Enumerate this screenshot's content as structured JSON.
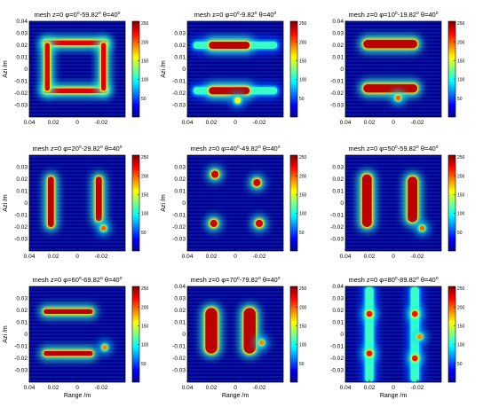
{
  "chart_data": [
    {
      "type": "heatmap",
      "title": {
        "pre": "mesh  z=0  φ=0",
        "mid": "-59.82",
        "post": "  θ=40"
      },
      "xlabel": "",
      "ylabel": "Azi /m",
      "xticks": [
        "0.04",
        "0.02",
        "0",
        "-0.02"
      ],
      "yticks": [
        "0.04",
        "0.03",
        "0.02",
        "0.01",
        "0",
        "-0.01",
        "-0.02",
        "-0.03"
      ],
      "xlim": [
        0.04,
        -0.04
      ],
      "ylim": [
        -0.04,
        0.04
      ],
      "colorbar_ticks": [
        "250",
        "200",
        "150",
        "100",
        "50"
      ],
      "colorbar_range": [
        0,
        255
      ],
      "features": [
        {
          "shape": "bar",
          "x": [
            0.028,
            -0.025
          ],
          "y": 0.022,
          "thickness": 0.004,
          "intensity": 230
        },
        {
          "shape": "bar",
          "x": [
            0.028,
            -0.025
          ],
          "y": -0.018,
          "thickness": 0.004,
          "intensity": 230
        },
        {
          "shape": "bar",
          "x": 0.025,
          "y": [
            -0.018,
            0.022
          ],
          "thickness": 0.004,
          "intensity": 230
        },
        {
          "shape": "bar",
          "x": -0.022,
          "y": [
            -0.018,
            0.022
          ],
          "thickness": 0.004,
          "intensity": 230
        }
      ]
    },
    {
      "type": "heatmap",
      "title": {
        "pre": "mesh  z=0  φ=0",
        "mid": "-9.82",
        "post": "  θ=40"
      },
      "xlabel": "",
      "ylabel": "Azi /m",
      "xticks": [
        "0.04",
        "0.02",
        "0",
        "-0.02"
      ],
      "yticks": [
        "0.03",
        "0.02",
        "0.01",
        "0",
        "-0.01",
        "-0.02",
        "-0.03"
      ],
      "xlim": [
        0.04,
        -0.04
      ],
      "ylim": [
        -0.04,
        0.04
      ],
      "colorbar_ticks": [
        "250",
        "200",
        "150",
        "100",
        "50"
      ],
      "colorbar_range": [
        0,
        255
      ],
      "features": [
        {
          "shape": "bar",
          "x": [
            0.035,
            -0.035
          ],
          "y": 0.02,
          "thickness": 0.006,
          "intensity": 110
        },
        {
          "shape": "bar",
          "x": [
            0.022,
            -0.012
          ],
          "y": 0.02,
          "thickness": 0.006,
          "intensity": 240
        },
        {
          "shape": "bar",
          "x": [
            0.035,
            -0.035
          ],
          "y": -0.018,
          "thickness": 0.006,
          "intensity": 110
        },
        {
          "shape": "bar",
          "x": [
            0.022,
            -0.012
          ],
          "y": -0.018,
          "thickness": 0.006,
          "intensity": 240
        },
        {
          "shape": "blob",
          "x": -0.002,
          "y": -0.026,
          "size": 0.005,
          "intensity": 160
        }
      ]
    },
    {
      "type": "heatmap",
      "title": {
        "pre": "mesh  z=0  φ=10",
        "mid": "-19.82",
        "post": "  θ=40"
      },
      "xlabel": "",
      "ylabel": "",
      "xticks": [
        "0.04",
        "0.02",
        "0",
        "-0.02"
      ],
      "yticks": [
        "0.04",
        "0.03",
        "0.02",
        "0.01",
        "0",
        "-0.01",
        "-0.02",
        "-0.03"
      ],
      "xlim": [
        0.04,
        -0.04
      ],
      "ylim": [
        -0.04,
        0.04
      ],
      "colorbar_ticks": [
        "250",
        "200",
        "150",
        "100",
        "50"
      ],
      "colorbar_range": [
        0,
        255
      ],
      "features": [
        {
          "shape": "bar",
          "x": [
            0.025,
            -0.02
          ],
          "y": 0.021,
          "thickness": 0.007,
          "intensity": 240
        },
        {
          "shape": "bar",
          "x": [
            0.025,
            -0.02
          ],
          "y": -0.016,
          "thickness": 0.007,
          "intensity": 240
        },
        {
          "shape": "blob",
          "x": -0.004,
          "y": -0.024,
          "size": 0.004,
          "intensity": 200
        }
      ]
    },
    {
      "type": "heatmap",
      "title": {
        "pre": "mesh  z=0  φ=20",
        "mid": "-29.82",
        "post": "  θ=40"
      },
      "xlabel": "",
      "ylabel": "Azi /m",
      "xticks": [
        "0.04",
        "0.02",
        "0",
        "-0.02"
      ],
      "yticks": [
        "0.03",
        "0.02",
        "0.01",
        "0",
        "-0.01",
        "-0.02",
        "-0.03"
      ],
      "xlim": [
        0.04,
        -0.04
      ],
      "ylim": [
        -0.04,
        0.04
      ],
      "colorbar_ticks": [
        "250",
        "200",
        "150",
        "100",
        "50"
      ],
      "colorbar_range": [
        0,
        255
      ],
      "features": [
        {
          "shape": "bar",
          "x": 0.022,
          "y": [
            -0.02,
            0.022
          ],
          "thickness": 0.005,
          "intensity": 240
        },
        {
          "shape": "bar",
          "x": -0.018,
          "y": [
            -0.015,
            0.022
          ],
          "thickness": 0.005,
          "intensity": 240
        },
        {
          "shape": "blob",
          "x": -0.022,
          "y": -0.021,
          "size": 0.004,
          "intensity": 200
        }
      ]
    },
    {
      "type": "heatmap",
      "title": {
        "pre": "mesh  z=0  φ=40",
        "mid": "-49.82",
        "post": "  θ=40"
      },
      "xlabel": "",
      "ylabel": "Azi /m",
      "xticks": [
        "0.04",
        "0.02",
        "0",
        "-0.02"
      ],
      "yticks": [
        "0.03",
        "0.02",
        "0.01",
        "0",
        "-0.01",
        "-0.02",
        "-0.03"
      ],
      "xlim": [
        0.04,
        -0.04
      ],
      "ylim": [
        -0.04,
        0.04
      ],
      "colorbar_ticks": [
        "250",
        "200",
        "150",
        "100",
        "50"
      ],
      "colorbar_range": [
        0,
        255
      ],
      "features": [
        {
          "shape": "blob",
          "x": 0.017,
          "y": 0.024,
          "size": 0.006,
          "intensity": 235
        },
        {
          "shape": "blob",
          "x": -0.018,
          "y": 0.017,
          "size": 0.006,
          "intensity": 235
        },
        {
          "shape": "blob",
          "x": 0.018,
          "y": -0.017,
          "size": 0.006,
          "intensity": 235
        },
        {
          "shape": "blob",
          "x": -0.02,
          "y": -0.017,
          "size": 0.006,
          "intensity": 235
        }
      ]
    },
    {
      "type": "heatmap",
      "title": {
        "pre": "mesh  z=0  φ=50",
        "mid": "-59.82",
        "post": "  θ=40"
      },
      "xlabel": "",
      "ylabel": "",
      "xticks": [
        "0.04",
        "0.02",
        "0",
        "-0.02"
      ],
      "yticks": [
        "0.03",
        "0.02",
        "0.01",
        "0",
        "-0.01",
        "-0.02",
        "-0.03"
      ],
      "xlim": [
        0.04,
        -0.04
      ],
      "ylim": [
        -0.04,
        0.04
      ],
      "colorbar_ticks": [
        "250",
        "200",
        "150",
        "100",
        "50"
      ],
      "colorbar_range": [
        0,
        255
      ],
      "features": [
        {
          "shape": "bar",
          "x": 0.022,
          "y": [
            -0.02,
            0.024
          ],
          "thickness": 0.008,
          "intensity": 240
        },
        {
          "shape": "bar",
          "x": -0.016,
          "y": [
            -0.016,
            0.022
          ],
          "thickness": 0.008,
          "intensity": 240
        },
        {
          "shape": "blob",
          "x": -0.024,
          "y": -0.021,
          "size": 0.004,
          "intensity": 200
        }
      ]
    },
    {
      "type": "heatmap",
      "title": {
        "pre": "mesh  z=0  φ=60",
        "mid": "-69.82",
        "post": "  θ=40"
      },
      "xlabel": "Range /m",
      "ylabel": "Azi /m",
      "xticks": [
        "0.04",
        "0.02",
        "0",
        "-0.02"
      ],
      "yticks": [
        "0.03",
        "0.02",
        "0.01",
        "0",
        "-0.01",
        "-0.02",
        "-0.03"
      ],
      "xlim": [
        0.04,
        -0.04
      ],
      "ylim": [
        -0.04,
        0.04
      ],
      "colorbar_ticks": [
        "250",
        "200",
        "150",
        "100",
        "50"
      ],
      "colorbar_range": [
        0,
        255
      ],
      "features": [
        {
          "shape": "bar",
          "x": [
            0.028,
            -0.013
          ],
          "y": 0.019,
          "thickness": 0.004,
          "intensity": 240
        },
        {
          "shape": "bar",
          "x": [
            0.028,
            -0.013
          ],
          "y": -0.016,
          "thickness": 0.004,
          "intensity": 240
        },
        {
          "shape": "blob",
          "x": -0.023,
          "y": -0.011,
          "size": 0.004,
          "intensity": 190
        }
      ]
    },
    {
      "type": "heatmap",
      "title": {
        "pre": "mesh  z=0  φ=70",
        "mid": "-79.82",
        "post": "  θ=40"
      },
      "xlabel": "Range /m",
      "ylabel": "",
      "xticks": [
        "0.04",
        "0.02",
        "0",
        "-0.02"
      ],
      "yticks": [
        "0.04",
        "0.03",
        "0.02",
        "0.01",
        "0",
        "-0.01",
        "-0.02",
        "-0.03"
      ],
      "xlim": [
        0.04,
        -0.04
      ],
      "ylim": [
        -0.04,
        0.04
      ],
      "colorbar_ticks": [
        "250",
        "200",
        "150",
        "100",
        "50"
      ],
      "colorbar_range": [
        0,
        255
      ],
      "features": [
        {
          "shape": "bar",
          "x": 0.02,
          "y": [
            -0.016,
            0.022
          ],
          "thickness": 0.01,
          "intensity": 240
        },
        {
          "shape": "bar",
          "x": -0.012,
          "y": [
            -0.016,
            0.022
          ],
          "thickness": 0.01,
          "intensity": 240
        },
        {
          "shape": "blob",
          "x": -0.022,
          "y": -0.007,
          "size": 0.004,
          "intensity": 190
        }
      ]
    },
    {
      "type": "heatmap",
      "title": {
        "pre": "mesh  z=0  φ=80",
        "mid": "-89.82",
        "post": "  θ=40"
      },
      "xlabel": "Range /m",
      "ylabel": "",
      "xticks": [
        "0.04",
        "0.02",
        "0",
        "-0.02"
      ],
      "yticks": [
        "0.04",
        "0.03",
        "0.02",
        "0.01",
        "0",
        "-0.01",
        "-0.02",
        "-0.03"
      ],
      "xlim": [
        0.04,
        -0.04
      ],
      "ylim": [
        -0.04,
        0.04
      ],
      "colorbar_ticks": [
        "250",
        "200",
        "150",
        "100",
        "50"
      ],
      "colorbar_range": [
        0,
        255
      ],
      "features": [
        {
          "shape": "bar",
          "x": 0.02,
          "y": [
            -0.04,
            0.04
          ],
          "thickness": 0.007,
          "intensity": 110
        },
        {
          "shape": "bar",
          "x": -0.018,
          "y": [
            -0.04,
            0.04
          ],
          "thickness": 0.007,
          "intensity": 110
        },
        {
          "shape": "blob",
          "x": 0.02,
          "y": 0.017,
          "size": 0.005,
          "intensity": 220
        },
        {
          "shape": "blob",
          "x": 0.02,
          "y": -0.016,
          "size": 0.005,
          "intensity": 220
        },
        {
          "shape": "blob",
          "x": -0.018,
          "y": 0.017,
          "size": 0.005,
          "intensity": 220
        },
        {
          "shape": "blob",
          "x": -0.018,
          "y": -0.02,
          "size": 0.005,
          "intensity": 220
        },
        {
          "shape": "blob",
          "x": -0.022,
          "y": -0.002,
          "size": 0.004,
          "intensity": 190
        }
      ]
    }
  ]
}
